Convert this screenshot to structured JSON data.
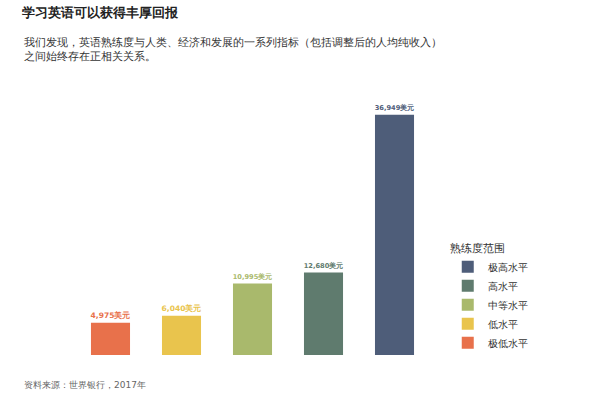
{
  "chart_data": {
    "type": "bar",
    "title": "学习英语可以获得丰厚回报",
    "subtitle": [
      "我们发现，英语熟练度与人类、经济和发展的一系列指标（包括调整后的人均纯收入）",
      "之间始终存在正相关关系。"
    ],
    "source": "资料来源：世界银行，2017年",
    "categories": [
      "极低水平",
      "低水平",
      "中等水平",
      "高水平",
      "极高水平"
    ],
    "values": [
      4975,
      6040,
      10995,
      12680,
      36949
    ],
    "value_labels": [
      "4,975美元",
      "6,040美元",
      "10,995美元",
      "12,680美元",
      "36,949美元"
    ],
    "colors": [
      "#e8714b",
      "#e9c44d",
      "#a9b96c",
      "#5f7b6e",
      "#4e5d79"
    ],
    "data_labels": true,
    "ylim": [
      0,
      40000
    ],
    "yticks": [
      0,
      40000
    ],
    "grid": false,
    "tick_labels": false,
    "legend": "right",
    "legend_title": "熟练度范围"
  }
}
